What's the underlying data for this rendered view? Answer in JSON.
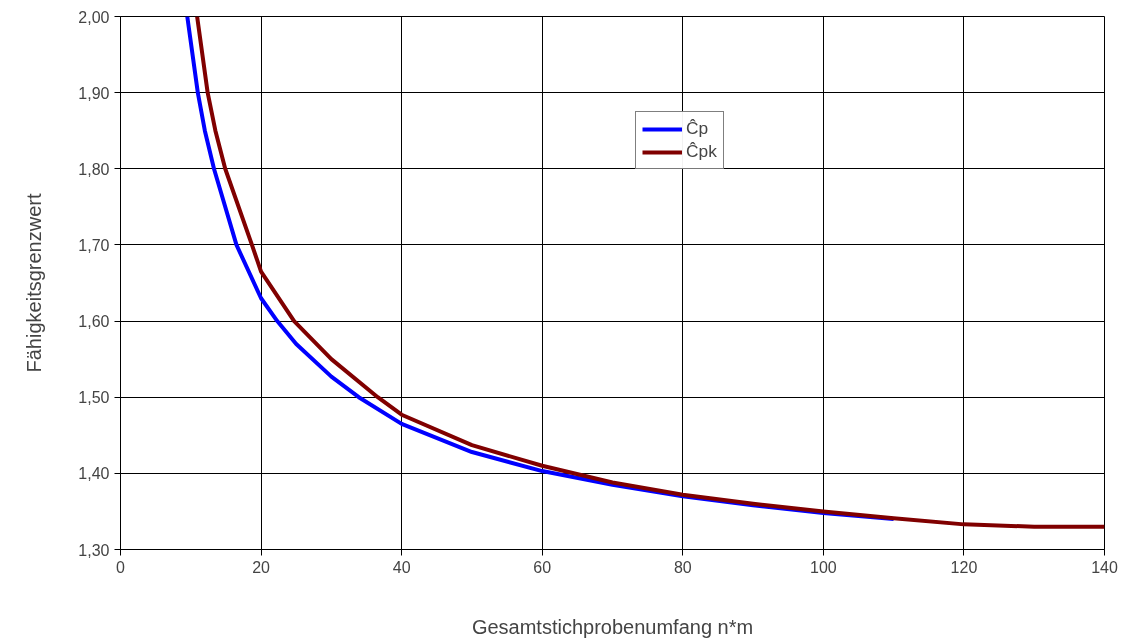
{
  "chart_data": {
    "type": "line",
    "xlabel": "Gesamtstichprobenumfang n*m",
    "ylabel": "Fähigkeitsgrenzwert",
    "xlim": [
      0,
      140
    ],
    "xticks": [
      0,
      20,
      40,
      60,
      80,
      100,
      120,
      140
    ],
    "ylim": [
      1.3,
      2.0
    ],
    "yticks": [
      {
        "value": 1.3,
        "label": "1,30"
      },
      {
        "value": 1.4,
        "label": "1,40"
      },
      {
        "value": 1.5,
        "label": "1,50"
      },
      {
        "value": 1.6,
        "label": "1,60"
      },
      {
        "value": 1.7,
        "label": "1,70"
      },
      {
        "value": 1.8,
        "label": "1,80"
      },
      {
        "value": 1.9,
        "label": "1,90"
      },
      {
        "value": 2.0,
        "label": "2,00"
      }
    ],
    "grid": true,
    "legend": "top right",
    "marker": "none",
    "line_style": "solid",
    "series": [
      {
        "name": "Ĉp",
        "color": "#0000ff",
        "x": [
          9.5,
          11,
          12,
          13.3,
          16.5,
          20,
          22.3,
          25,
          30,
          33.9,
          40,
          50,
          60,
          70,
          80,
          90,
          100,
          110
        ],
        "values": [
          2.0,
          1.9,
          1.85,
          1.8,
          1.7,
          1.63,
          1.6,
          1.57,
          1.527,
          1.5,
          1.465,
          1.428,
          1.403,
          1.385,
          1.37,
          1.358,
          1.348,
          1.34
        ]
      },
      {
        "name": "Ĉpk",
        "color": "#800000",
        "x": [
          10.9,
          12.4,
          13.5,
          14.9,
          18.7,
          20,
          24.7,
          30,
          36.6,
          40,
          50,
          60,
          70,
          80,
          90,
          100,
          110,
          120,
          130,
          140
        ],
        "values": [
          2.0,
          1.9,
          1.85,
          1.8,
          1.7,
          1.665,
          1.6,
          1.55,
          1.5,
          1.477,
          1.437,
          1.41,
          1.388,
          1.372,
          1.36,
          1.35,
          1.341,
          1.333,
          1.33,
          1.33
        ]
      }
    ]
  }
}
